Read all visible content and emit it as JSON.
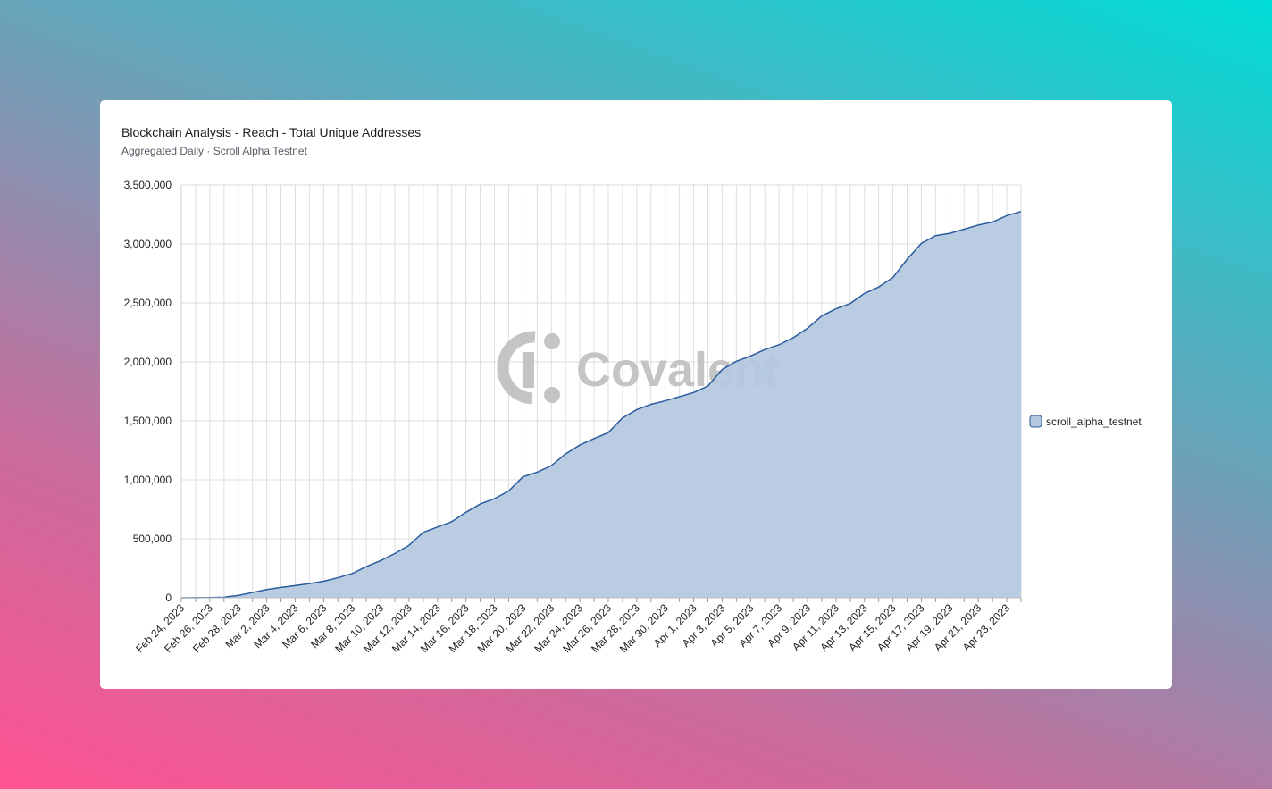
{
  "card": {
    "title": "Blockchain Analysis - Reach - Total Unique Addresses",
    "subtitle": "Aggregated Daily · Scroll Alpha Testnet",
    "watermark": "Covalent"
  },
  "colors": {
    "line": "#2a5c9e",
    "fill": "#b4c8e0",
    "grid": "#dedede",
    "axis_text": "#222222",
    "watermark": "#c4c4c4"
  },
  "chart_data": {
    "type": "area",
    "title": "Blockchain Analysis - Reach - Total Unique Addresses",
    "subtitle": "Aggregated Daily · Scroll Alpha Testnet",
    "xlabel": "",
    "ylabel": "",
    "ylim": [
      0,
      3500000
    ],
    "yticks": [
      0,
      500000,
      1000000,
      1500000,
      2000000,
      2500000,
      3000000,
      3500000
    ],
    "ytick_labels": [
      "0",
      "500,000",
      "1,000,000",
      "1,500,000",
      "2,000,000",
      "2,500,000",
      "3,000,000",
      "3,500,000"
    ],
    "x_tick_labels": [
      "Feb 24, 2023",
      "Feb 26, 2023",
      "Feb 28, 2023",
      "Mar 2, 2023",
      "Mar 4, 2023",
      "Mar 6, 2023",
      "Mar 8, 2023",
      "Mar 10, 2023",
      "Mar 12, 2023",
      "Mar 14, 2023",
      "Mar 16, 2023",
      "Mar 18, 2023",
      "Mar 20, 2023",
      "Mar 22, 2023",
      "Mar 24, 2023",
      "Mar 26, 2023",
      "Mar 28, 2023",
      "Mar 30, 2023",
      "Apr 1, 2023",
      "Apr 3, 2023",
      "Apr 5, 2023",
      "Apr 7, 2023",
      "Apr 9, 2023",
      "Apr 11, 2023",
      "Apr 13, 2023",
      "Apr 15, 2023",
      "Apr 17, 2023",
      "Apr 19, 2023",
      "Apr 21, 2023",
      "Apr 23, 2023"
    ],
    "grid": true,
    "legend_position": "right",
    "series": [
      {
        "name": "scroll_alpha_testnet",
        "x": [
          "2023-02-24",
          "2023-02-25",
          "2023-02-26",
          "2023-02-27",
          "2023-02-28",
          "2023-03-01",
          "2023-03-02",
          "2023-03-03",
          "2023-03-04",
          "2023-03-05",
          "2023-03-06",
          "2023-03-07",
          "2023-03-08",
          "2023-03-09",
          "2023-03-10",
          "2023-03-11",
          "2023-03-12",
          "2023-03-13",
          "2023-03-14",
          "2023-03-15",
          "2023-03-16",
          "2023-03-17",
          "2023-03-18",
          "2023-03-19",
          "2023-03-20",
          "2023-03-21",
          "2023-03-22",
          "2023-03-23",
          "2023-03-24",
          "2023-03-25",
          "2023-03-26",
          "2023-03-27",
          "2023-03-28",
          "2023-03-29",
          "2023-03-30",
          "2023-03-31",
          "2023-04-01",
          "2023-04-02",
          "2023-04-03",
          "2023-04-04",
          "2023-04-05",
          "2023-04-06",
          "2023-04-07",
          "2023-04-08",
          "2023-04-09",
          "2023-04-10",
          "2023-04-11",
          "2023-04-12",
          "2023-04-13",
          "2023-04-14",
          "2023-04-15",
          "2023-04-16",
          "2023-04-17",
          "2023-04-18",
          "2023-04-19",
          "2023-04-20",
          "2023-04-21",
          "2023-04-22",
          "2023-04-23",
          "2023-04-24"
        ],
        "values": [
          0,
          1000,
          2000,
          5000,
          20000,
          45000,
          70000,
          88000,
          103000,
          120000,
          140000,
          170000,
          205000,
          265000,
          315000,
          375000,
          445000,
          555000,
          600000,
          645000,
          725000,
          795000,
          840000,
          905000,
          1025000,
          1065000,
          1120000,
          1220000,
          1295000,
          1350000,
          1400000,
          1525000,
          1595000,
          1640000,
          1670000,
          1705000,
          1740000,
          1795000,
          1935000,
          2005000,
          2050000,
          2105000,
          2145000,
          2205000,
          2285000,
          2390000,
          2450000,
          2495000,
          2580000,
          2635000,
          2715000,
          2870000,
          3005000,
          3070000,
          3090000,
          3125000,
          3160000,
          3185000,
          3240000,
          3275000
        ]
      }
    ]
  }
}
